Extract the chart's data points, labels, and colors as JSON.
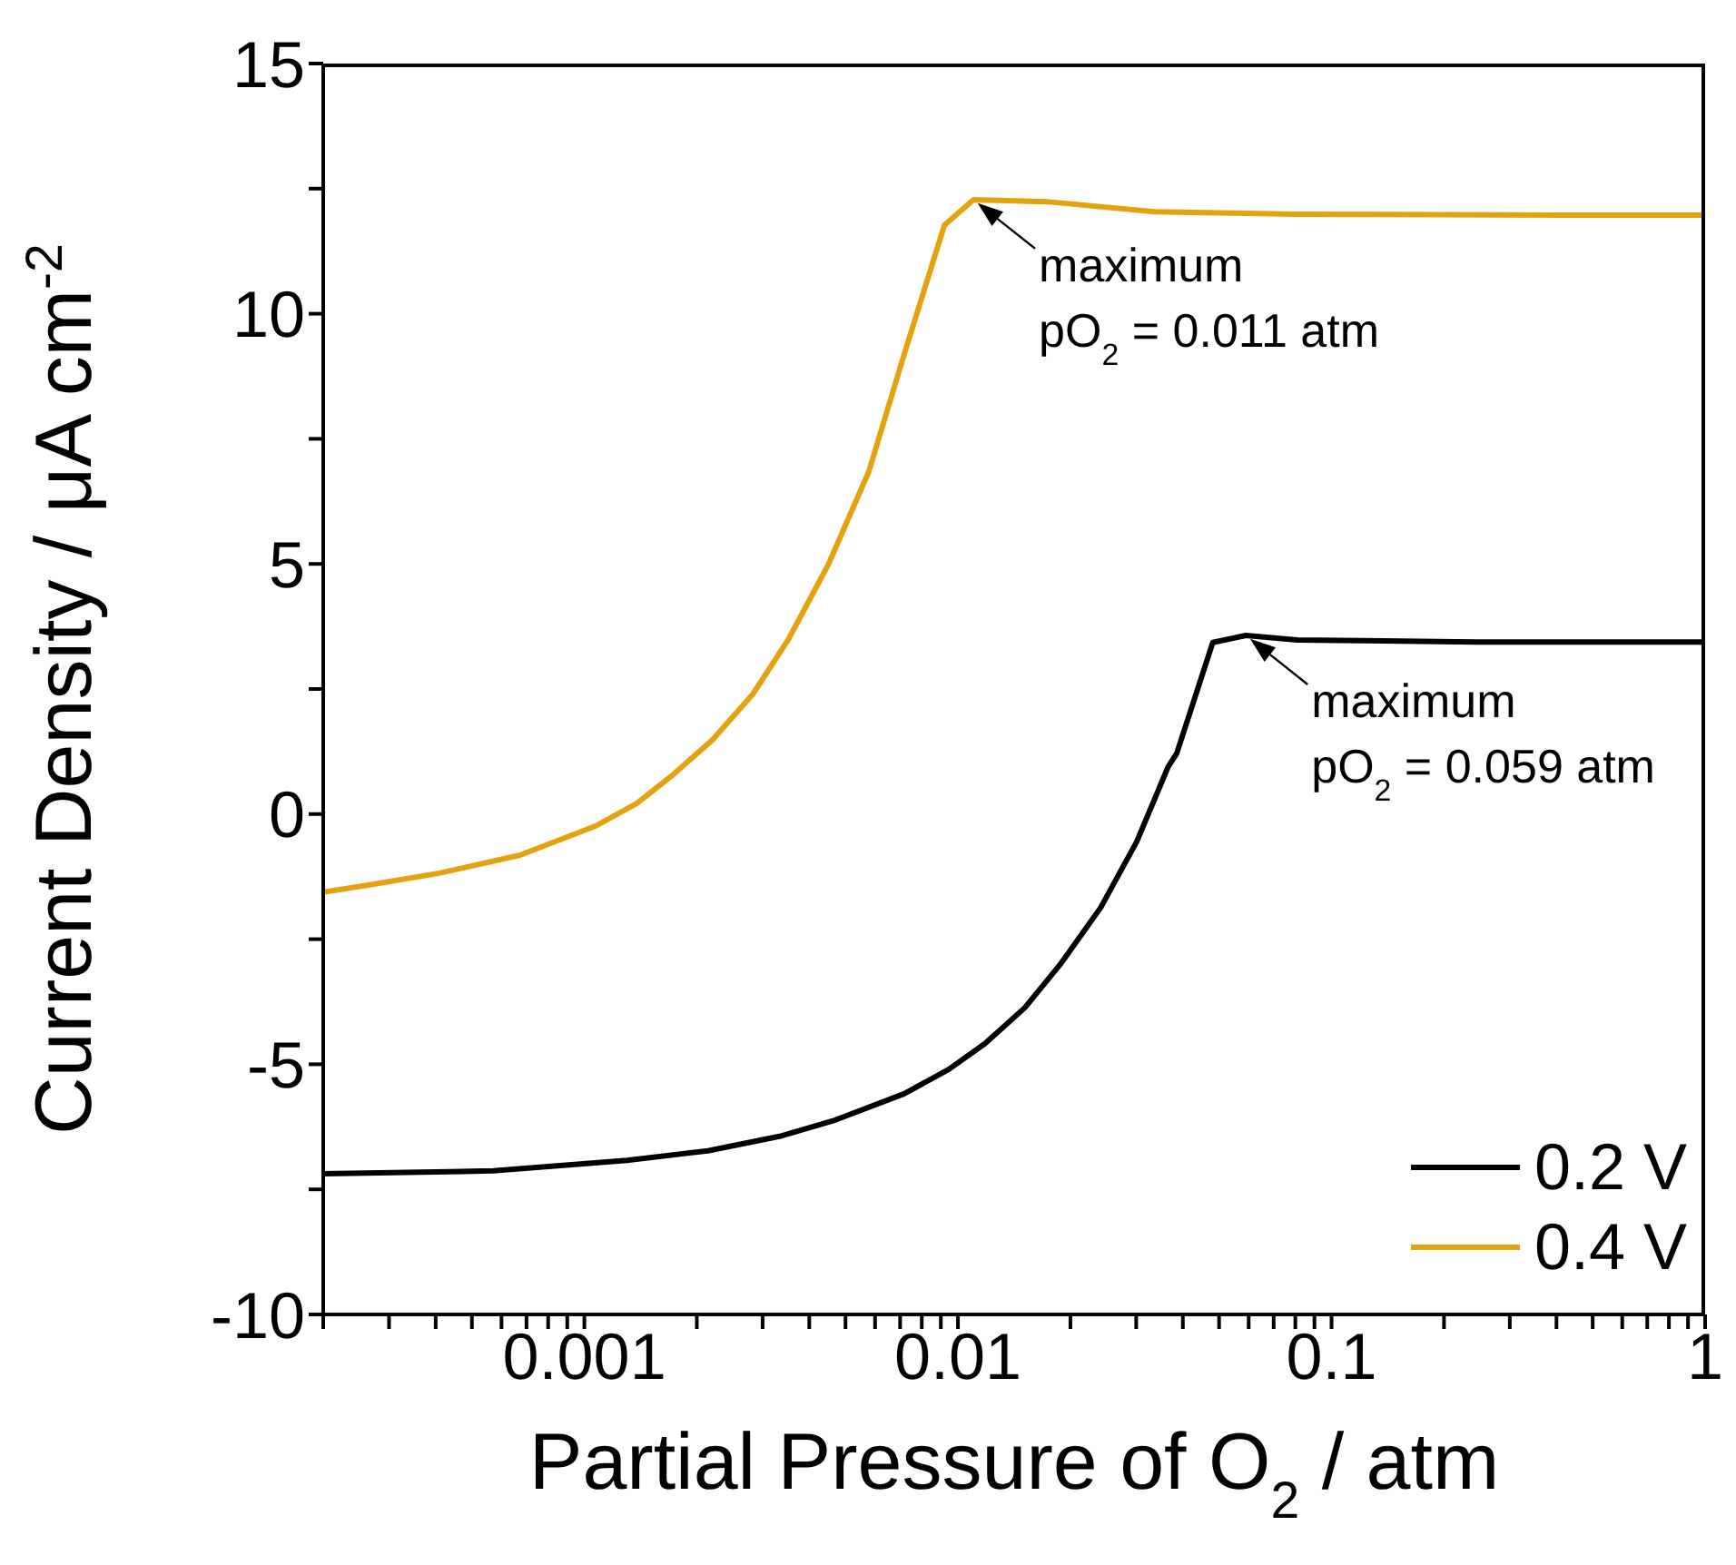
{
  "chart_data": {
    "type": "line",
    "xlabel": "Partial Pressure of O$_{2}$ / atm",
    "ylabel": "Current Density / μA cm$^{-2}$",
    "log": "x",
    "xlim": [
      0.0002,
      1
    ],
    "ylim": [
      -10,
      15
    ],
    "xticks": [
      {
        "value": 0.0002,
        "label": null
      },
      {
        "value": 0.0003,
        "label": null
      },
      {
        "value": 0.0004,
        "label": null
      },
      {
        "value": 0.0005,
        "label": null
      },
      {
        "value": 0.0006,
        "label": null
      },
      {
        "value": 0.0007,
        "label": null
      },
      {
        "value": 0.0008,
        "label": null
      },
      {
        "value": 0.0009,
        "label": null
      },
      0.001,
      {
        "value": 0.002,
        "label": null
      },
      {
        "value": 0.003,
        "label": null
      },
      {
        "value": 0.004,
        "label": null
      },
      {
        "value": 0.005,
        "label": null
      },
      {
        "value": 0.006,
        "label": null
      },
      {
        "value": 0.007,
        "label": null
      },
      {
        "value": 0.008,
        "label": null
      },
      {
        "value": 0.009,
        "label": null
      },
      0.01,
      {
        "value": 0.02,
        "label": null
      },
      {
        "value": 0.03,
        "label": null
      },
      {
        "value": 0.04,
        "label": null
      },
      {
        "value": 0.05,
        "label": null
      },
      {
        "value": 0.06,
        "label": null
      },
      {
        "value": 0.07,
        "label": null
      },
      {
        "value": 0.08,
        "label": null
      },
      {
        "value": 0.09,
        "label": null
      },
      0.1,
      {
        "value": 0.2,
        "label": null
      },
      {
        "value": 0.3,
        "label": null
      },
      {
        "value": 0.4,
        "label": null
      },
      {
        "value": 0.5,
        "label": null
      },
      {
        "value": 0.6,
        "label": null
      },
      {
        "value": 0.7,
        "label": null
      },
      {
        "value": 0.8,
        "label": null
      },
      {
        "value": 0.9,
        "label": null
      },
      1
    ],
    "yticks": [
      -10,
      {
        "value": -7.5,
        "label": null
      },
      -5,
      {
        "value": -2.5,
        "label": null
      },
      0,
      {
        "value": 2.5,
        "label": null
      },
      5,
      {
        "value": 7.5,
        "label": null
      },
      10,
      {
        "value": 12.5,
        "label": null
      },
      15
    ],
    "legend": "bottom right",
    "marker": "none",
    "line_style": "solid",
    "series": [
      {
        "name": "0.2 V",
        "color": "#000000",
        "x": [
          0.0002,
          0.00057,
          0.0013,
          0.00214,
          0.00333,
          0.00463,
          0.00718,
          0.00946,
          0.0118,
          0.0151,
          0.0188,
          0.0241,
          0.0301,
          0.0365,
          0.0385,
          0.0481,
          0.059,
          0.081,
          0.243,
          1
        ],
        "values": [
          -7.19,
          -7.13,
          -6.92,
          -6.73,
          -6.44,
          -6.13,
          -5.59,
          -5.1,
          -4.59,
          -3.87,
          -3.0,
          -1.87,
          -0.55,
          0.94,
          1.21,
          3.43,
          3.57,
          3.48,
          3.44,
          3.44
        ]
      },
      {
        "name": "0.4 V",
        "color": "#e3a20e",
        "x": [
          0.0002,
          0.000264,
          0.000409,
          0.000673,
          0.00107,
          0.00138,
          0.00171,
          0.0022,
          0.00282,
          0.00351,
          0.0045,
          0.00577,
          0.00718,
          0.0092,
          0.011,
          0.0173,
          0.0336,
          0.081,
          0.42,
          1
        ],
        "values": [
          -1.56,
          -1.42,
          -1.18,
          -0.82,
          -0.24,
          0.21,
          0.76,
          1.48,
          2.39,
          3.48,
          4.99,
          6.84,
          9.19,
          11.77,
          12.28,
          12.24,
          12.04,
          11.99,
          11.97,
          11.97
        ]
      }
    ],
    "annotations": [
      {
        "text": "maximum\npO$_{2}$ = 0.011 atm",
        "x": 0.011,
        "y": 12.28
      },
      {
        "text": "maximum\npO$_{2}$ = 0.059 atm",
        "x": 0.059,
        "y": 3.57
      }
    ]
  }
}
